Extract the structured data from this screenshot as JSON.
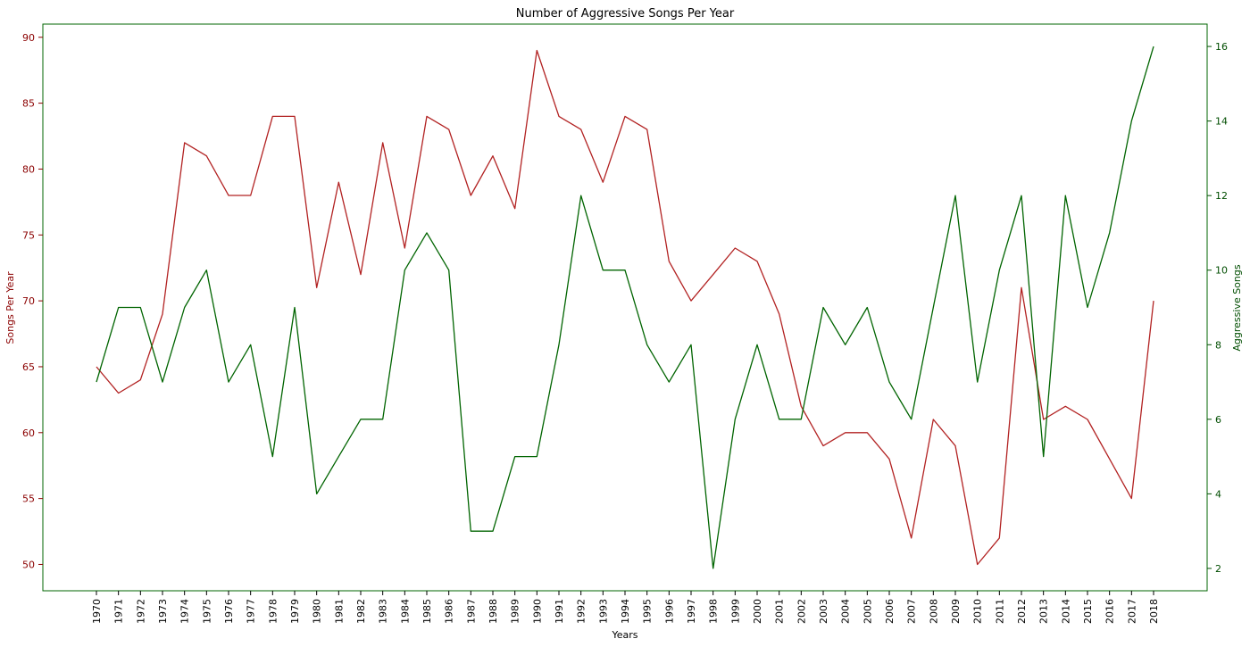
{
  "chart_data": {
    "type": "line",
    "title": "Number of Aggressive Songs Per Year",
    "xlabel": "Years",
    "ylabel_left": "Songs Per Year",
    "ylabel_right": "Aggressive Songs",
    "x": [
      "1970",
      "1971",
      "1972",
      "1973",
      "1974",
      "1975",
      "1976",
      "1977",
      "1978",
      "1979",
      "1980",
      "1981",
      "1982",
      "1983",
      "1984",
      "1985",
      "1986",
      "1987",
      "1988",
      "1989",
      "1990",
      "1991",
      "1992",
      "1993",
      "1994",
      "1995",
      "1996",
      "1997",
      "1998",
      "1999",
      "2000",
      "2001",
      "2002",
      "2003",
      "2004",
      "2005",
      "2006",
      "2007",
      "2008",
      "2009",
      "2010",
      "2011",
      "2012",
      "2013",
      "2014",
      "2015",
      "2016",
      "2017",
      "2018"
    ],
    "ylim_left": [
      48,
      91
    ],
    "yticks_left": [
      50,
      55,
      60,
      65,
      70,
      75,
      80,
      85,
      90
    ],
    "ylim_right": [
      1.4,
      16.6
    ],
    "yticks_right": [
      2,
      4,
      6,
      8,
      10,
      12,
      14,
      16
    ],
    "grid": false,
    "series": [
      {
        "axis": "left",
        "color": "#b22222",
        "values": [
          65,
          63,
          64,
          69,
          82,
          81,
          78,
          78,
          84,
          84,
          71,
          79,
          72,
          82,
          74,
          84,
          83,
          78,
          81,
          77,
          89,
          84,
          83,
          79,
          84,
          83,
          73,
          70,
          72,
          74,
          73,
          69,
          62,
          59,
          60,
          60,
          58,
          52,
          61,
          59,
          50,
          52,
          71,
          61,
          62,
          61,
          58,
          55,
          70
        ]
      },
      {
        "axis": "right",
        "color": "#006400",
        "values": [
          7,
          9,
          9,
          7,
          9,
          10,
          7,
          8,
          5,
          9,
          4,
          5,
          6,
          6,
          10,
          11,
          10,
          3,
          3,
          5,
          5,
          8,
          12,
          10,
          10,
          8,
          7,
          8,
          2,
          6,
          8,
          6,
          6,
          9,
          8,
          9,
          7,
          6,
          9,
          12,
          7,
          10,
          12,
          5,
          12,
          9,
          11,
          14,
          16
        ]
      }
    ],
    "left_axis_color": "#8b0000",
    "right_axis_color": "#004d00",
    "frame_color": "#006400"
  }
}
